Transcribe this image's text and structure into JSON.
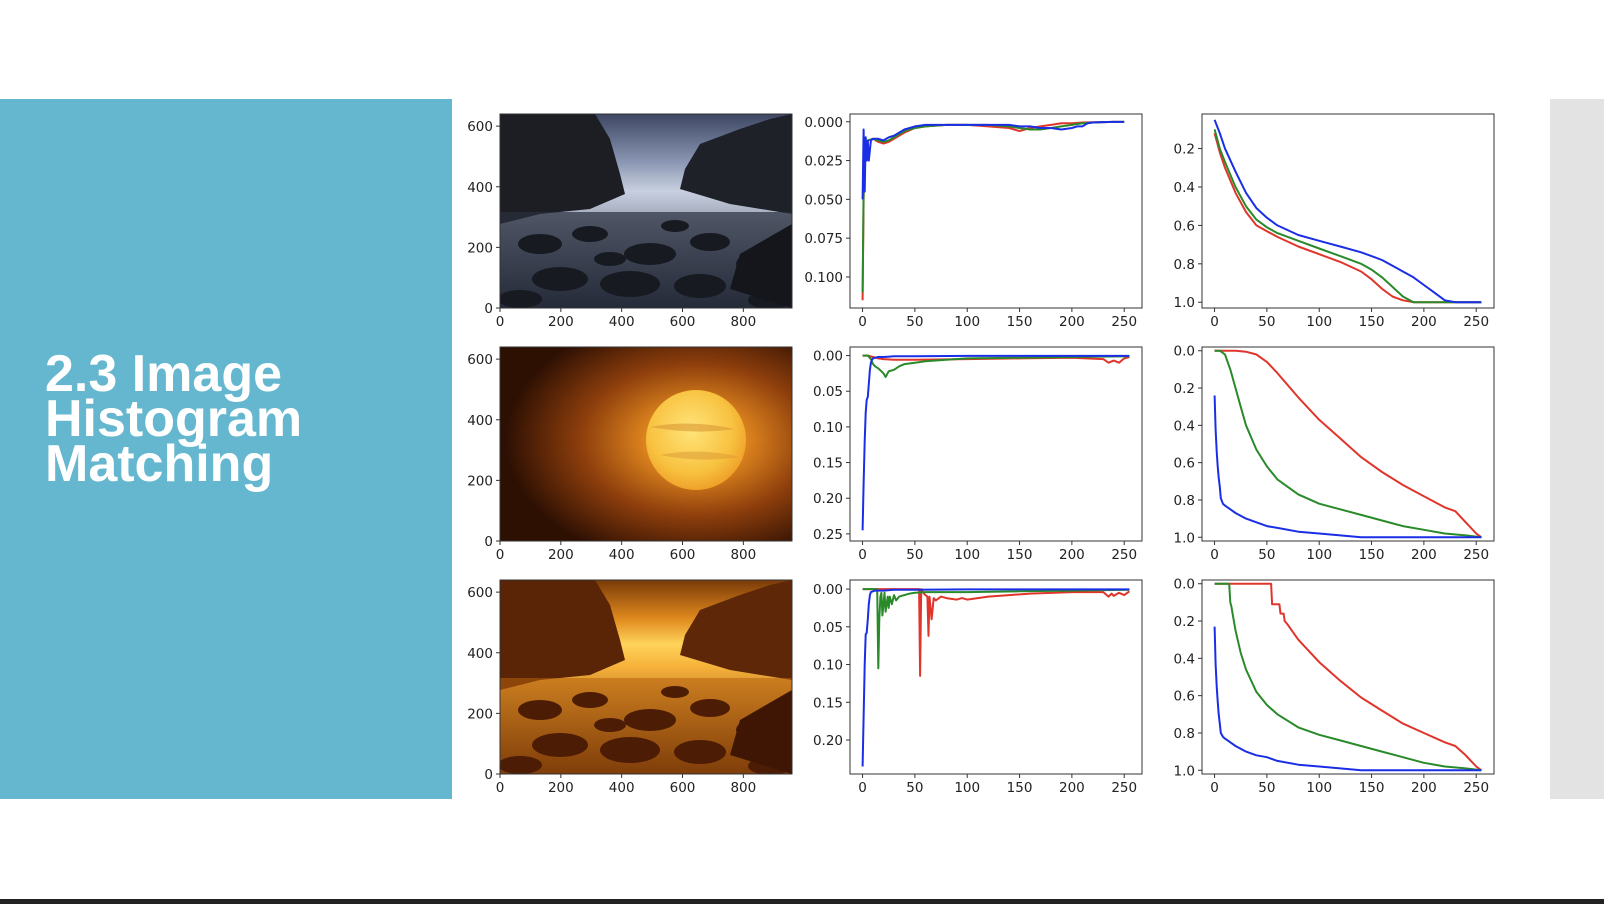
{
  "slide": {
    "title_lines": [
      "2.3 Image",
      "Histogram",
      "Matching"
    ]
  },
  "colors": {
    "panel": "#65b7cf",
    "red_channel": "#e0352b",
    "green_channel": "#2a8a2a",
    "blue_channel": "#1a2ee6"
  },
  "images": [
    {
      "depiction": "source photo: rocky coastal cove at dusk, blue-grey tones"
    },
    {
      "depiction": "reference photo: large glowing sun in orange sky"
    },
    {
      "depiction": "matched result: rocky coastal cove in orange-gold tones"
    }
  ],
  "chart_data": [
    {
      "type": "image",
      "row": 0,
      "x_ticks": [
        0,
        200,
        400,
        600,
        800
      ],
      "y_ticks": [
        0,
        200,
        400,
        600
      ],
      "xlim": [
        0,
        960
      ],
      "ylim": [
        640,
        0
      ]
    },
    {
      "type": "line",
      "row": 0,
      "x_ticks": [
        0,
        50,
        100,
        150,
        200,
        250
      ],
      "y_ticks": [
        "0.000",
        "0.025",
        "0.050",
        "0.075",
        "0.100"
      ],
      "xlim": [
        -12,
        267
      ],
      "ylim": [
        -0.005,
        0.12
      ],
      "series": [
        {
          "color": "red",
          "x": [
            0,
            1,
            2,
            5,
            10,
            15,
            20,
            25,
            30,
            40,
            50,
            60,
            80,
            100,
            120,
            140,
            150,
            155,
            160,
            170,
            180,
            190,
            200,
            210,
            220,
            230,
            240,
            250
          ],
          "y": [
            0.115,
            0.05,
            0.02,
            0.012,
            0.011,
            0.013,
            0.014,
            0.013,
            0.011,
            0.007,
            0.004,
            0.003,
            0.002,
            0.002,
            0.003,
            0.004,
            0.006,
            0.005,
            0.004,
            0.003,
            0.002,
            0.001,
            0.001,
            0.0005,
            0.0003,
            0.0002,
            0.0001,
            0.0001
          ]
        },
        {
          "color": "green",
          "x": [
            0,
            1,
            2,
            5,
            10,
            15,
            20,
            25,
            30,
            40,
            50,
            60,
            80,
            100,
            120,
            140,
            150,
            160,
            170,
            180,
            190,
            200,
            210,
            220,
            230,
            240,
            250
          ],
          "y": [
            0.11,
            0.045,
            0.018,
            0.012,
            0.011,
            0.012,
            0.013,
            0.012,
            0.01,
            0.006,
            0.004,
            0.003,
            0.002,
            0.002,
            0.002,
            0.003,
            0.004,
            0.005,
            0.005,
            0.004,
            0.003,
            0.002,
            0.001,
            0.0005,
            0.0002,
            0.0001,
            0.0001
          ]
        },
        {
          "color": "blue",
          "x": [
            0,
            1,
            2,
            3,
            4,
            5,
            6,
            8,
            10,
            15,
            20,
            25,
            30,
            40,
            50,
            60,
            80,
            100,
            120,
            140,
            150,
            160,
            170,
            180,
            190,
            200,
            205,
            210,
            215,
            220,
            230,
            240,
            250
          ],
          "y": [
            0.05,
            0.005,
            0.045,
            0.01,
            0.025,
            0.012,
            0.025,
            0.012,
            0.011,
            0.011,
            0.012,
            0.01,
            0.009,
            0.005,
            0.003,
            0.002,
            0.002,
            0.002,
            0.002,
            0.002,
            0.003,
            0.003,
            0.004,
            0.004,
            0.005,
            0.004,
            0.003,
            0.003,
            0.001,
            0.0005,
            0.0002,
            0.0001,
            0.0001
          ]
        }
      ]
    },
    {
      "type": "line",
      "row": 0,
      "x_ticks": [
        0,
        50,
        100,
        150,
        200,
        250
      ],
      "y_ticks": [
        "0.2",
        "0.4",
        "0.6",
        "0.8",
        "1.0"
      ],
      "xlim": [
        -12,
        267
      ],
      "ylim": [
        0.02,
        1.03
      ],
      "series": [
        {
          "color": "red",
          "x": [
            0,
            5,
            10,
            20,
            30,
            40,
            50,
            60,
            80,
            100,
            120,
            140,
            150,
            160,
            170,
            180,
            190,
            200,
            210,
            255
          ],
          "y": [
            0.12,
            0.22,
            0.3,
            0.43,
            0.53,
            0.6,
            0.63,
            0.66,
            0.71,
            0.75,
            0.79,
            0.84,
            0.88,
            0.93,
            0.97,
            0.99,
            1.0,
            1.0,
            1.0,
            1.0
          ]
        },
        {
          "color": "green",
          "x": [
            0,
            5,
            10,
            20,
            30,
            40,
            50,
            60,
            80,
            100,
            120,
            140,
            150,
            160,
            170,
            180,
            190,
            200,
            210,
            255
          ],
          "y": [
            0.1,
            0.2,
            0.27,
            0.4,
            0.5,
            0.57,
            0.61,
            0.64,
            0.68,
            0.72,
            0.76,
            0.8,
            0.83,
            0.87,
            0.92,
            0.97,
            1.0,
            1.0,
            1.0,
            1.0
          ]
        },
        {
          "color": "blue",
          "x": [
            0,
            5,
            10,
            20,
            30,
            40,
            50,
            60,
            80,
            100,
            120,
            140,
            150,
            160,
            170,
            180,
            190,
            200,
            210,
            220,
            230,
            255
          ],
          "y": [
            0.05,
            0.12,
            0.2,
            0.32,
            0.43,
            0.51,
            0.56,
            0.6,
            0.65,
            0.68,
            0.71,
            0.74,
            0.76,
            0.78,
            0.81,
            0.84,
            0.87,
            0.91,
            0.95,
            0.99,
            1.0,
            1.0
          ]
        }
      ]
    },
    {
      "type": "image",
      "row": 1,
      "x_ticks": [
        0,
        200,
        400,
        600,
        800
      ],
      "y_ticks": [
        0,
        200,
        400,
        600
      ],
      "xlim": [
        0,
        960
      ],
      "ylim": [
        640,
        0
      ]
    },
    {
      "type": "line",
      "row": 1,
      "x_ticks": [
        0,
        50,
        100,
        150,
        200,
        250
      ],
      "y_ticks": [
        "0.00",
        "0.05",
        "0.10",
        "0.15",
        "0.20",
        "0.25"
      ],
      "xlim": [
        -12,
        267
      ],
      "ylim": [
        -0.012,
        0.26
      ],
      "series": [
        {
          "color": "red",
          "x": [
            0,
            5,
            10,
            15,
            20,
            30,
            50,
            100,
            150,
            200,
            230,
            235,
            240,
            245,
            250,
            255
          ],
          "y": [
            0,
            0,
            0.002,
            0.004,
            0.005,
            0.006,
            0.006,
            0.005,
            0.004,
            0.003,
            0.005,
            0.01,
            0.007,
            0.01,
            0.004,
            0.002
          ]
        },
        {
          "color": "green",
          "x": [
            0,
            5,
            8,
            10,
            12,
            15,
            18,
            20,
            22,
            25,
            30,
            35,
            40,
            50,
            60,
            80,
            100,
            150,
            200,
            255
          ],
          "y": [
            0,
            0,
            0.005,
            0.012,
            0.015,
            0.018,
            0.022,
            0.025,
            0.03,
            0.022,
            0.02,
            0.015,
            0.012,
            0.01,
            0.008,
            0.006,
            0.004,
            0.003,
            0.002,
            0.001
          ]
        },
        {
          "color": "blue",
          "x": [
            0,
            1,
            2,
            3,
            4,
            5,
            6,
            7,
            8,
            9,
            10,
            12,
            15,
            20,
            30,
            50,
            100,
            150,
            200,
            255
          ],
          "y": [
            0.245,
            0.18,
            0.12,
            0.08,
            0.062,
            0.058,
            0.04,
            0.02,
            0.01,
            0.006,
            0.004,
            0.003,
            0.002,
            0.002,
            0.001,
            0.001,
            0.0005,
            0.0005,
            0.0005,
            0.0005
          ]
        }
      ]
    },
    {
      "type": "line",
      "row": 1,
      "x_ticks": [
        0,
        50,
        100,
        150,
        200,
        250
      ],
      "y_ticks": [
        "0.0",
        "0.2",
        "0.4",
        "0.6",
        "0.8",
        "1.0"
      ],
      "xlim": [
        -12,
        267
      ],
      "ylim": [
        -0.02,
        1.02
      ],
      "series": [
        {
          "color": "red",
          "x": [
            0,
            20,
            30,
            40,
            50,
            60,
            80,
            100,
            120,
            140,
            160,
            180,
            200,
            220,
            230,
            240,
            250,
            255
          ],
          "y": [
            0,
            0,
            0.005,
            0.02,
            0.06,
            0.12,
            0.25,
            0.37,
            0.47,
            0.57,
            0.65,
            0.72,
            0.78,
            0.84,
            0.86,
            0.92,
            0.98,
            1.0
          ]
        },
        {
          "color": "green",
          "x": [
            0,
            5,
            10,
            15,
            20,
            25,
            30,
            40,
            50,
            60,
            80,
            100,
            120,
            140,
            160,
            180,
            200,
            220,
            240,
            255
          ],
          "y": [
            0,
            0,
            0.02,
            0.1,
            0.2,
            0.3,
            0.4,
            0.53,
            0.62,
            0.69,
            0.77,
            0.82,
            0.85,
            0.88,
            0.91,
            0.94,
            0.96,
            0.98,
            0.99,
            1.0
          ]
        },
        {
          "color": "blue",
          "x": [
            0,
            1,
            2,
            3,
            4,
            5,
            6,
            8,
            10,
            15,
            20,
            30,
            40,
            50,
            60,
            80,
            100,
            120,
            140,
            200,
            255
          ],
          "y": [
            0.24,
            0.42,
            0.54,
            0.62,
            0.68,
            0.73,
            0.79,
            0.82,
            0.83,
            0.85,
            0.87,
            0.9,
            0.92,
            0.94,
            0.95,
            0.97,
            0.98,
            0.99,
            1.0,
            1.0,
            1.0
          ]
        }
      ]
    },
    {
      "type": "image",
      "row": 2,
      "x_ticks": [
        0,
        200,
        400,
        600,
        800
      ],
      "y_ticks": [
        0,
        200,
        400,
        600
      ],
      "xlim": [
        0,
        960
      ],
      "ylim": [
        640,
        0
      ]
    },
    {
      "type": "line",
      "row": 2,
      "x_ticks": [
        0,
        50,
        100,
        150,
        200,
        250
      ],
      "y_ticks": [
        "0.00",
        "0.05",
        "0.10",
        "0.15",
        "0.20"
      ],
      "xlim": [
        -12,
        267
      ],
      "ylim": [
        -0.012,
        0.245
      ],
      "series": [
        {
          "color": "red",
          "x": [
            0,
            52,
            54,
            55,
            56,
            58,
            60,
            62,
            63,
            64,
            66,
            68,
            70,
            75,
            80,
            85,
            90,
            95,
            100,
            110,
            120,
            140,
            160,
            200,
            230,
            235,
            238,
            240,
            245,
            250,
            255
          ],
          "y": [
            0,
            0,
            0,
            0.115,
            0,
            0.005,
            0.008,
            0.01,
            0.062,
            0.01,
            0.04,
            0.012,
            0.015,
            0.01,
            0.012,
            0.013,
            0.014,
            0.012,
            0.014,
            0.012,
            0.01,
            0.008,
            0.006,
            0.004,
            0.004,
            0.01,
            0.006,
            0.009,
            0.005,
            0.008,
            0.003
          ]
        },
        {
          "color": "green",
          "x": [
            0,
            14,
            15,
            16,
            17,
            18,
            19,
            20,
            21,
            22,
            24,
            25,
            26,
            28,
            30,
            32,
            35,
            40,
            45,
            50,
            60,
            80,
            100,
            150,
            200,
            255
          ],
          "y": [
            0,
            0,
            0.105,
            0.04,
            0.01,
            0.005,
            0.035,
            0.02,
            0.005,
            0.03,
            0.01,
            0.025,
            0.01,
            0.02,
            0.008,
            0.015,
            0.01,
            0.008,
            0.006,
            0.005,
            0.004,
            0.004,
            0.004,
            0.003,
            0.002,
            0.001
          ]
        },
        {
          "color": "blue",
          "x": [
            0,
            1,
            2,
            3,
            4,
            5,
            6,
            7,
            8,
            10,
            12,
            15,
            20,
            30,
            50,
            100,
            150,
            200,
            255
          ],
          "y": [
            0.235,
            0.17,
            0.1,
            0.06,
            0.058,
            0.04,
            0.02,
            0.008,
            0.004,
            0.003,
            0.002,
            0.002,
            0.002,
            0.001,
            0.001,
            0.0005,
            0.0005,
            0.0005,
            0.0005
          ]
        }
      ]
    },
    {
      "type": "line",
      "row": 2,
      "x_ticks": [
        0,
        50,
        100,
        150,
        200,
        250
      ],
      "y_ticks": [
        "0.0",
        "0.2",
        "0.4",
        "0.6",
        "0.8",
        "1.0"
      ],
      "xlim": [
        -12,
        267
      ],
      "ylim": [
        -0.02,
        1.02
      ],
      "series": [
        {
          "color": "red",
          "x": [
            0,
            54,
            55,
            62,
            63,
            66,
            67,
            70,
            80,
            100,
            120,
            140,
            160,
            180,
            200,
            220,
            230,
            240,
            250,
            255
          ],
          "y": [
            0,
            0,
            0.11,
            0.11,
            0.16,
            0.16,
            0.2,
            0.22,
            0.3,
            0.42,
            0.52,
            0.61,
            0.68,
            0.75,
            0.8,
            0.85,
            0.87,
            0.92,
            0.98,
            1.0
          ]
        },
        {
          "color": "green",
          "x": [
            0,
            14,
            15,
            16,
            20,
            25,
            30,
            40,
            50,
            60,
            80,
            100,
            120,
            140,
            160,
            180,
            200,
            220,
            240,
            255
          ],
          "y": [
            0,
            0,
            0.1,
            0.12,
            0.25,
            0.37,
            0.46,
            0.58,
            0.65,
            0.7,
            0.77,
            0.81,
            0.84,
            0.87,
            0.9,
            0.93,
            0.96,
            0.98,
            0.99,
            1.0
          ]
        },
        {
          "color": "blue",
          "x": [
            0,
            1,
            2,
            3,
            4,
            5,
            6,
            8,
            10,
            15,
            20,
            30,
            40,
            50,
            60,
            80,
            100,
            120,
            140,
            200,
            255
          ],
          "y": [
            0.23,
            0.43,
            0.55,
            0.63,
            0.7,
            0.75,
            0.8,
            0.82,
            0.83,
            0.85,
            0.87,
            0.9,
            0.92,
            0.93,
            0.95,
            0.97,
            0.98,
            0.99,
            1.0,
            1.0,
            1.0
          ]
        }
      ]
    }
  ]
}
